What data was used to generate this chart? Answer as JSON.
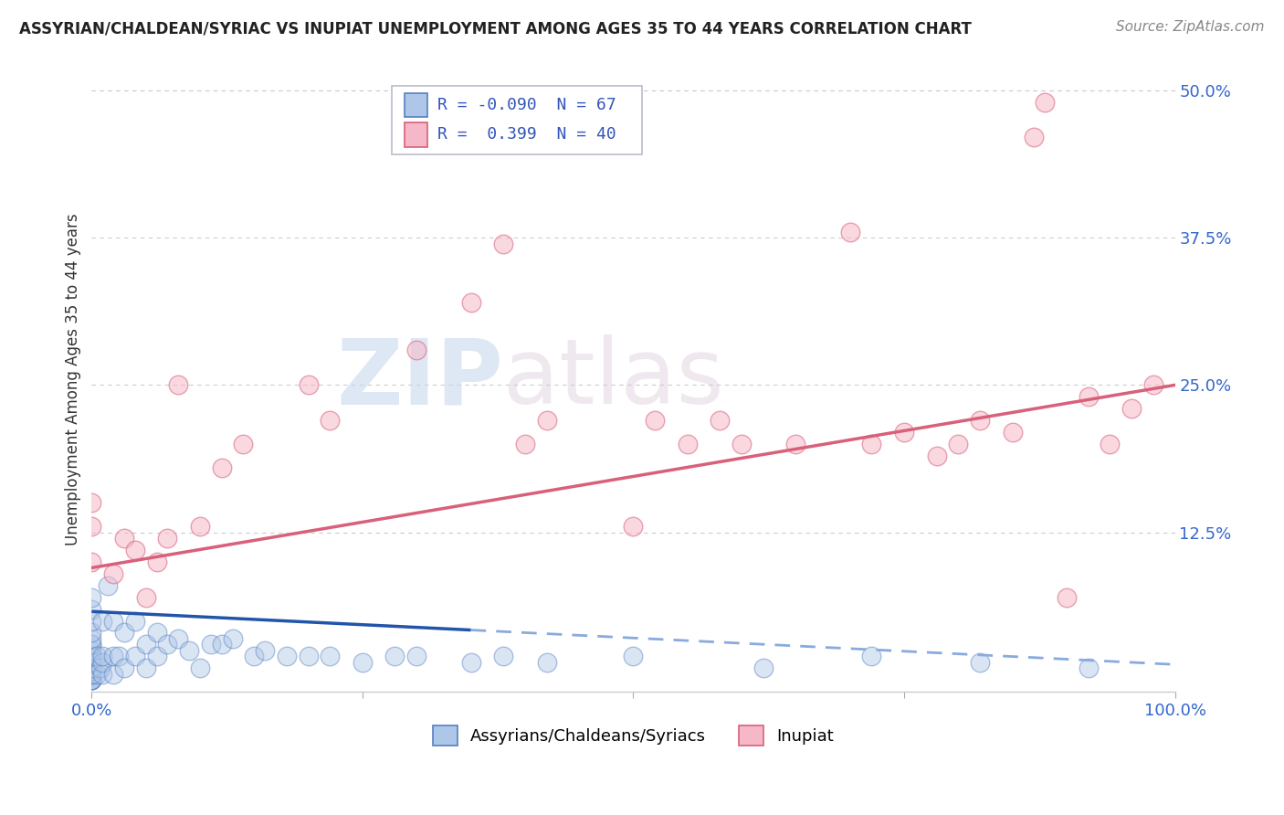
{
  "title": "ASSYRIAN/CHALDEAN/SYRIAC VS INUPIAT UNEMPLOYMENT AMONG AGES 35 TO 44 YEARS CORRELATION CHART",
  "source": "Source: ZipAtlas.com",
  "ylabel": "Unemployment Among Ages 35 to 44 years",
  "xlim": [
    0,
    1.0
  ],
  "ylim": [
    -0.01,
    0.52
  ],
  "yticks": [
    0.0,
    0.125,
    0.25,
    0.375,
    0.5
  ],
  "ytick_labels": [
    "",
    "12.5%",
    "25.0%",
    "37.5%",
    "50.0%"
  ],
  "xticks": [
    0.0,
    0.25,
    0.5,
    0.75,
    1.0
  ],
  "xtick_labels": [
    "0.0%",
    "",
    "",
    "",
    "100.0%"
  ],
  "blue_R": -0.09,
  "blue_N": 67,
  "pink_R": 0.399,
  "pink_N": 40,
  "blue_color": "#aec6e8",
  "blue_edge_color": "#5580c0",
  "pink_color": "#f5b8c8",
  "pink_edge_color": "#d9607a",
  "blue_line_color": "#2255aa",
  "blue_line_dash_color": "#88aadd",
  "pink_line_color": "#d9607a",
  "blue_line_solid_end": 0.35,
  "blue_intercept": 0.058,
  "blue_slope": -0.045,
  "pink_intercept": 0.095,
  "pink_slope": 0.155,
  "watermark_zip": "ZIP",
  "watermark_atlas": "atlas",
  "legend_label_blue": "Assyrians/Chaldeans/Syriacs",
  "legend_label_pink": "Inupiat",
  "background_color": "#ffffff",
  "grid_color": "#cccccc",
  "blue_scatter_x": [
    0.0,
    0.0,
    0.0,
    0.0,
    0.0,
    0.0,
    0.0,
    0.0,
    0.0,
    0.0,
    0.0,
    0.0,
    0.0,
    0.0,
    0.0,
    0.0,
    0.0,
    0.0,
    0.0,
    0.0,
    0.0,
    0.0,
    0.0,
    0.0,
    0.005,
    0.005,
    0.008,
    0.01,
    0.01,
    0.01,
    0.01,
    0.015,
    0.02,
    0.02,
    0.02,
    0.025,
    0.03,
    0.03,
    0.04,
    0.04,
    0.05,
    0.05,
    0.06,
    0.06,
    0.07,
    0.08,
    0.09,
    0.1,
    0.11,
    0.12,
    0.13,
    0.15,
    0.16,
    0.18,
    0.2,
    0.22,
    0.25,
    0.28,
    0.3,
    0.35,
    0.38,
    0.42,
    0.5,
    0.62,
    0.72,
    0.82,
    0.92
  ],
  "blue_scatter_y": [
    0.0,
    0.0,
    0.0,
    0.0,
    0.0,
    0.005,
    0.005,
    0.008,
    0.01,
    0.01,
    0.01,
    0.015,
    0.015,
    0.02,
    0.02,
    0.02,
    0.025,
    0.03,
    0.03,
    0.035,
    0.04,
    0.05,
    0.06,
    0.07,
    0.005,
    0.02,
    0.01,
    0.005,
    0.015,
    0.02,
    0.05,
    0.08,
    0.005,
    0.02,
    0.05,
    0.02,
    0.01,
    0.04,
    0.02,
    0.05,
    0.01,
    0.03,
    0.02,
    0.04,
    0.03,
    0.035,
    0.025,
    0.01,
    0.03,
    0.03,
    0.035,
    0.02,
    0.025,
    0.02,
    0.02,
    0.02,
    0.015,
    0.02,
    0.02,
    0.015,
    0.02,
    0.015,
    0.02,
    0.01,
    0.02,
    0.015,
    0.01
  ],
  "pink_scatter_x": [
    0.0,
    0.0,
    0.0,
    0.02,
    0.03,
    0.04,
    0.05,
    0.06,
    0.07,
    0.08,
    0.1,
    0.12,
    0.14,
    0.2,
    0.22,
    0.3,
    0.35,
    0.38,
    0.4,
    0.42,
    0.5,
    0.52,
    0.55,
    0.58,
    0.6,
    0.65,
    0.7,
    0.72,
    0.75,
    0.78,
    0.8,
    0.82,
    0.85,
    0.87,
    0.88,
    0.9,
    0.92,
    0.94,
    0.96,
    0.98
  ],
  "pink_scatter_y": [
    0.13,
    0.1,
    0.15,
    0.09,
    0.12,
    0.11,
    0.07,
    0.1,
    0.12,
    0.25,
    0.13,
    0.18,
    0.2,
    0.25,
    0.22,
    0.28,
    0.32,
    0.37,
    0.2,
    0.22,
    0.13,
    0.22,
    0.2,
    0.22,
    0.2,
    0.2,
    0.38,
    0.2,
    0.21,
    0.19,
    0.2,
    0.22,
    0.21,
    0.46,
    0.49,
    0.07,
    0.24,
    0.2,
    0.23,
    0.25
  ]
}
